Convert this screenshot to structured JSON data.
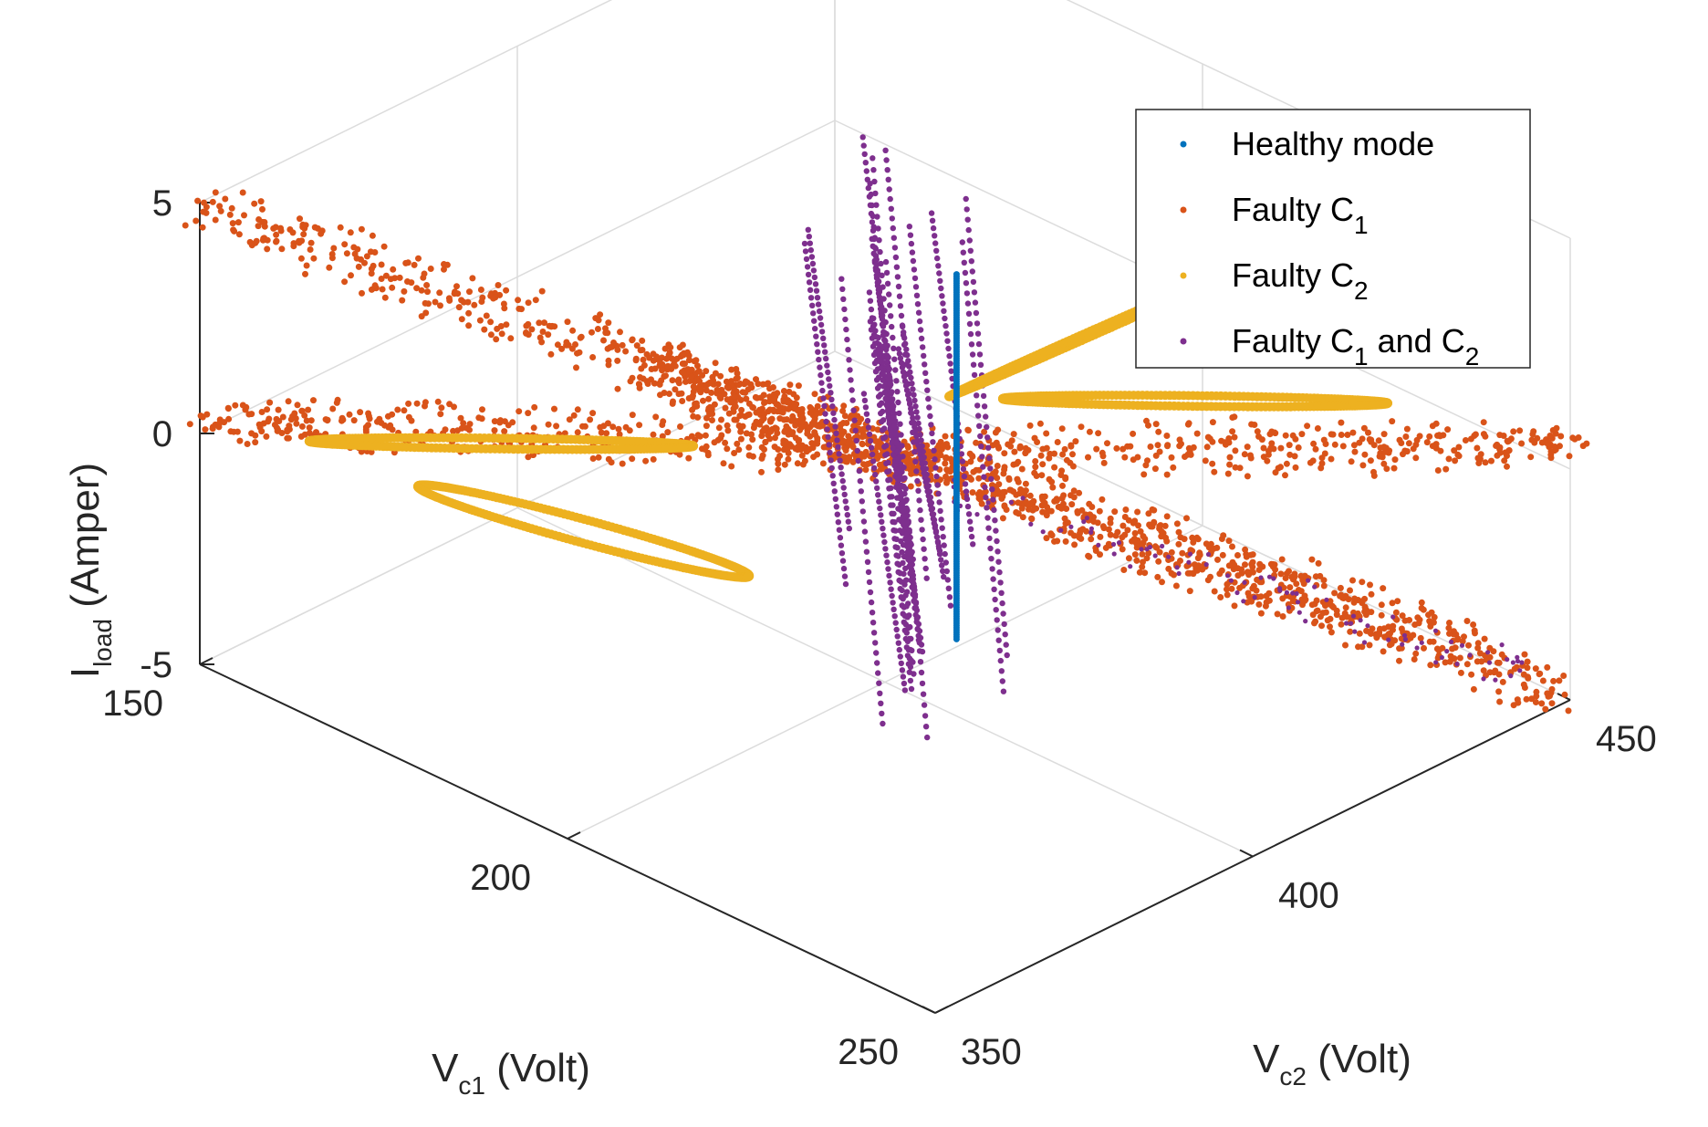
{
  "chart_data": {
    "type": "scatter",
    "dimensions": 3,
    "title": "",
    "xlabel": {
      "main": "V",
      "sub": "c1",
      "rest": " (Volt)"
    },
    "ylabel": {
      "main": "V",
      "sub": "c2",
      "rest": " (Volt)"
    },
    "zlabel": {
      "main": "I",
      "sub": "load",
      "rest": " (Amper)"
    },
    "xlim": [
      150,
      250
    ],
    "ylim": [
      350,
      450
    ],
    "zlim": [
      -5,
      5
    ],
    "x_ticks": [
      "150",
      "200",
      "250"
    ],
    "y_ticks": [
      "350",
      "400",
      "450"
    ],
    "z_ticks": [
      "5",
      "0",
      "-5"
    ],
    "grid": true,
    "legend_position": "top-right",
    "series": [
      {
        "name": "Healthy mode",
        "legend": {
          "main": "Healthy mode",
          "sub": "",
          "rest": "",
          "sub2": ""
        },
        "color": "#0072BD",
        "description": "vertical line of points at a fixed operating point",
        "points": [
          [
            200,
            400,
            -3.6
          ],
          [
            200,
            400,
            -2
          ],
          [
            200,
            400,
            0
          ],
          [
            200,
            400,
            2
          ],
          [
            200,
            400,
            4.3
          ]
        ]
      },
      {
        "name": "Faulty C1",
        "legend": {
          "main": "Faulty C",
          "sub": "1",
          "rest": "",
          "sub2": ""
        },
        "color": "#D95319",
        "description": "four diagonal blades through the centre",
        "points": [
          [
            150,
            350,
            5
          ],
          [
            175,
            375,
            2.5
          ],
          [
            200,
            400,
            0
          ],
          [
            225,
            425,
            -2.5
          ],
          [
            250,
            450,
            -5
          ],
          [
            150,
            350,
            0.5
          ],
          [
            170,
            380,
            0.3
          ],
          [
            200,
            400,
            0
          ],
          [
            230,
            430,
            0.6
          ],
          [
            250,
            450,
            1
          ],
          [
            200,
            400,
            0
          ],
          [
            220,
            410,
            -1.5
          ],
          [
            240,
            425,
            -3
          ],
          [
            250,
            440,
            -4
          ],
          [
            200,
            400,
            0
          ],
          [
            180,
            385,
            2
          ],
          [
            190,
            400,
            3
          ]
        ]
      },
      {
        "name": "Faulty C2",
        "legend": {
          "main": "Faulty C",
          "sub": "2",
          "rest": "",
          "sub2": ""
        },
        "color": "#EDB120",
        "description": "four elongated loops around the centre",
        "points": [
          [
            215,
            425,
            3.5
          ],
          [
            210,
            410,
            2
          ],
          [
            200,
            400,
            0.5
          ],
          [
            235,
            425,
            0.8
          ],
          [
            230,
            440,
            0.5
          ],
          [
            160,
            360,
            -0.2
          ],
          [
            175,
            375,
            0
          ],
          [
            165,
            365,
            -2.5
          ],
          [
            185,
            385,
            -1.5
          ]
        ]
      },
      {
        "name": "Faulty C1 and C2",
        "legend": {
          "main": "Faulty C",
          "sub": "1",
          "rest": " and C",
          "sub2": "2"
        },
        "color": "#7E2F8E",
        "description": "near-vertical strands plus a sparse diagonal tail",
        "points": [
          [
            195,
            395,
            6
          ],
          [
            198,
            398,
            0
          ],
          [
            205,
            405,
            -6
          ],
          [
            205,
            410,
            -1
          ],
          [
            225,
            430,
            -2
          ],
          [
            245,
            445,
            -4
          ]
        ]
      }
    ]
  }
}
